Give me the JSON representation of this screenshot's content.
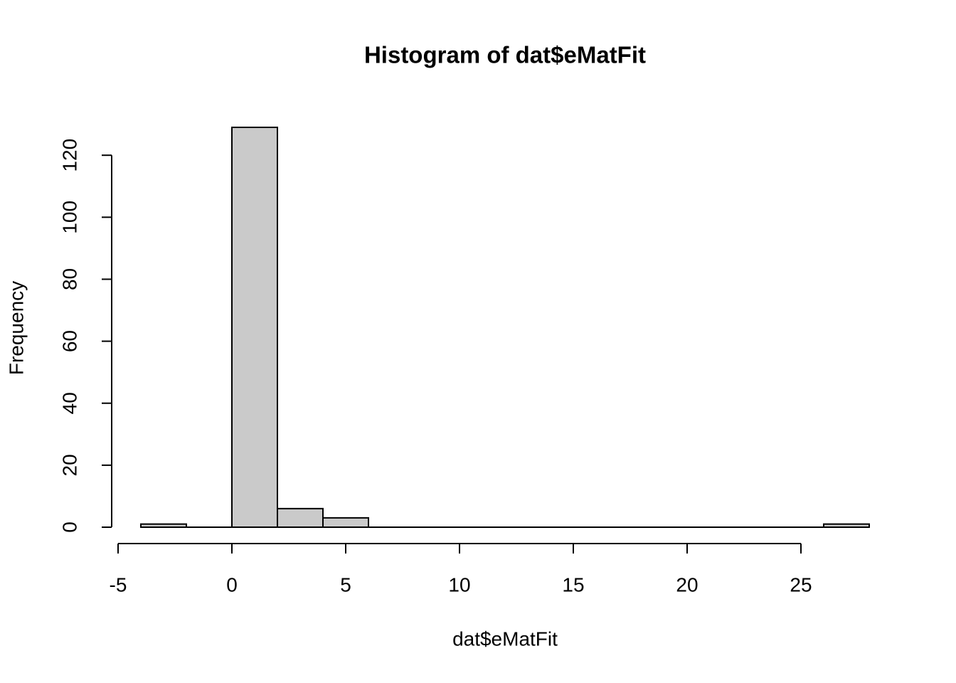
{
  "chart_data": {
    "type": "histogram",
    "title": "Histogram of dat$eMatFit",
    "x_label": "dat$eMatFit",
    "y_label": "Frequency",
    "bins": [
      -4,
      -2,
      0,
      2,
      4,
      6,
      8,
      10,
      12,
      14,
      16,
      18,
      20,
      22,
      24,
      26,
      28
    ],
    "counts": [
      1,
      0,
      129,
      6,
      3,
      0,
      0,
      0,
      0,
      0,
      0,
      0,
      0,
      0,
      0,
      1
    ],
    "color": "#cacaca",
    "xlim": [
      -4,
      28
    ],
    "xticks": [
      -5,
      0,
      5,
      10,
      15,
      20,
      25
    ],
    "ylim": [
      0,
      129
    ],
    "yticks": [
      0,
      20,
      40,
      60,
      80,
      100,
      120
    ]
  }
}
